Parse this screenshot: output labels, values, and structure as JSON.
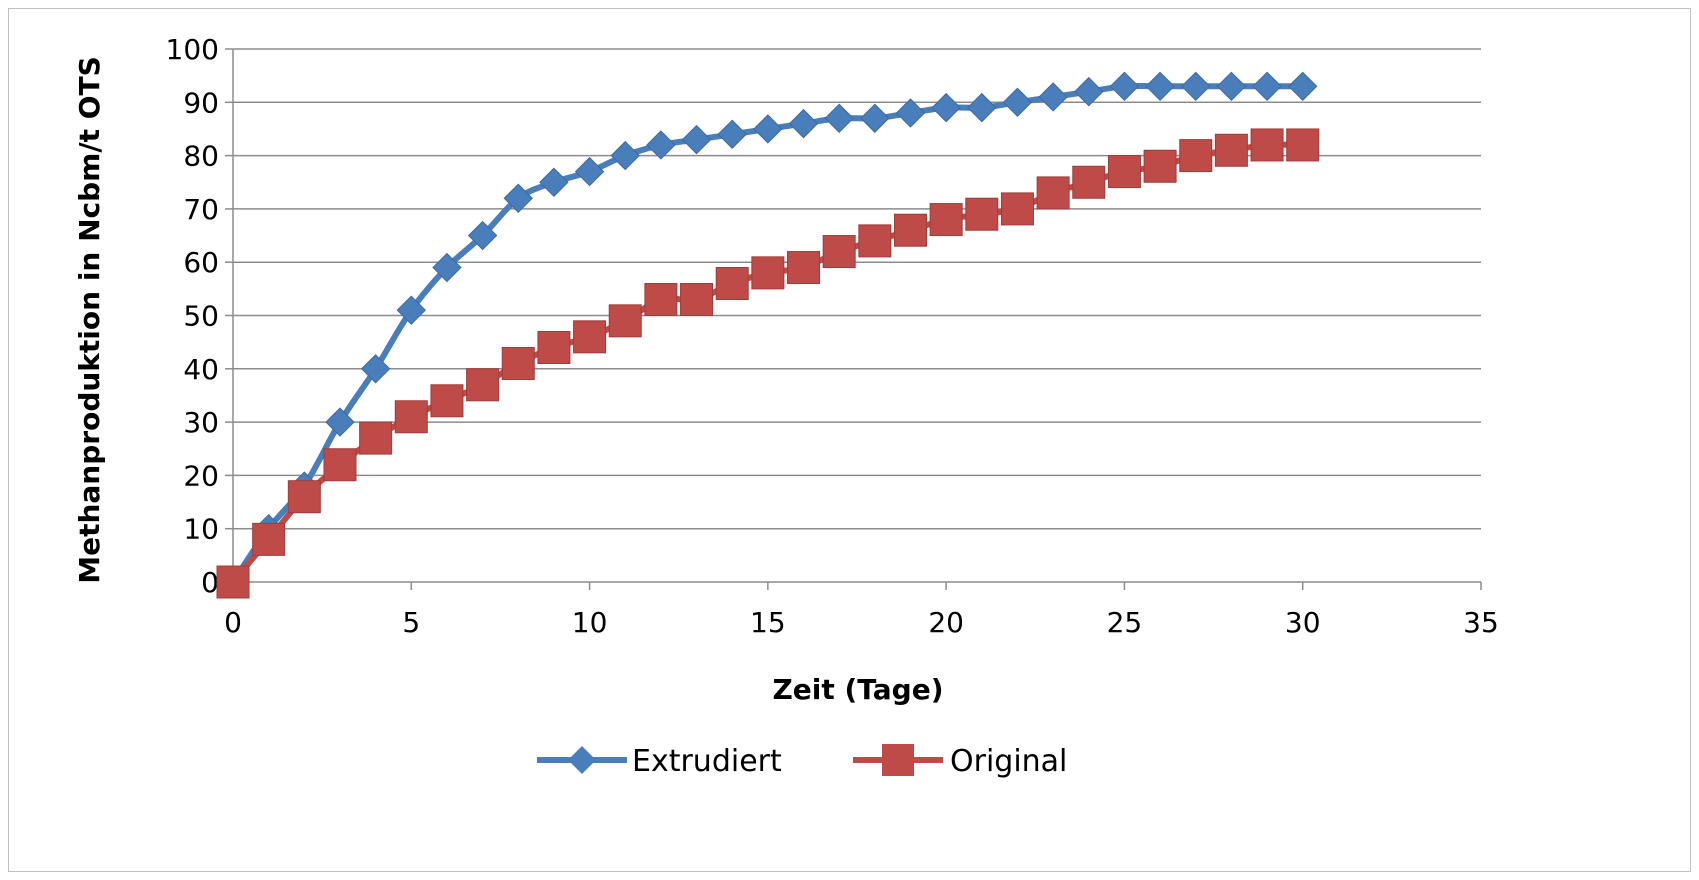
{
  "chart_data": {
    "type": "line",
    "xlabel": "Zeit (Tage)",
    "ylabel": "Methanproduktion in Ncbm/t OTS",
    "xlim": [
      0,
      35
    ],
    "ylim": [
      0,
      100
    ],
    "xticks": [
      0,
      5,
      10,
      15,
      20,
      25,
      30,
      35
    ],
    "yticks": [
      0,
      10,
      20,
      30,
      40,
      50,
      60,
      70,
      80,
      90,
      100
    ],
    "grid": "horizontal",
    "legend_position": "bottom",
    "x": [
      0,
      1,
      2,
      3,
      4,
      5,
      6,
      7,
      8,
      9,
      10,
      11,
      12,
      13,
      14,
      15,
      16,
      17,
      18,
      19,
      20,
      21,
      22,
      23,
      24,
      25,
      26,
      27,
      28,
      29,
      30
    ],
    "series": [
      {
        "name": "Extrudiert",
        "color": "#4a7ebb",
        "marker": "diamond",
        "values": [
          0,
          10,
          18,
          30,
          40,
          51,
          59,
          65,
          72,
          75,
          77,
          80,
          82,
          83,
          84,
          85,
          86,
          87,
          87,
          88,
          89,
          89,
          90,
          91,
          92,
          93,
          93,
          93,
          93,
          93,
          93
        ]
      },
      {
        "name": "Original",
        "color": "#be4b48",
        "marker": "square",
        "values": [
          0,
          8,
          16,
          22,
          27,
          31,
          34,
          37,
          41,
          44,
          46,
          49,
          53,
          53,
          56,
          58,
          59,
          62,
          64,
          66,
          68,
          69,
          70,
          73,
          75,
          77,
          78,
          80,
          81,
          82,
          82
        ]
      }
    ]
  }
}
